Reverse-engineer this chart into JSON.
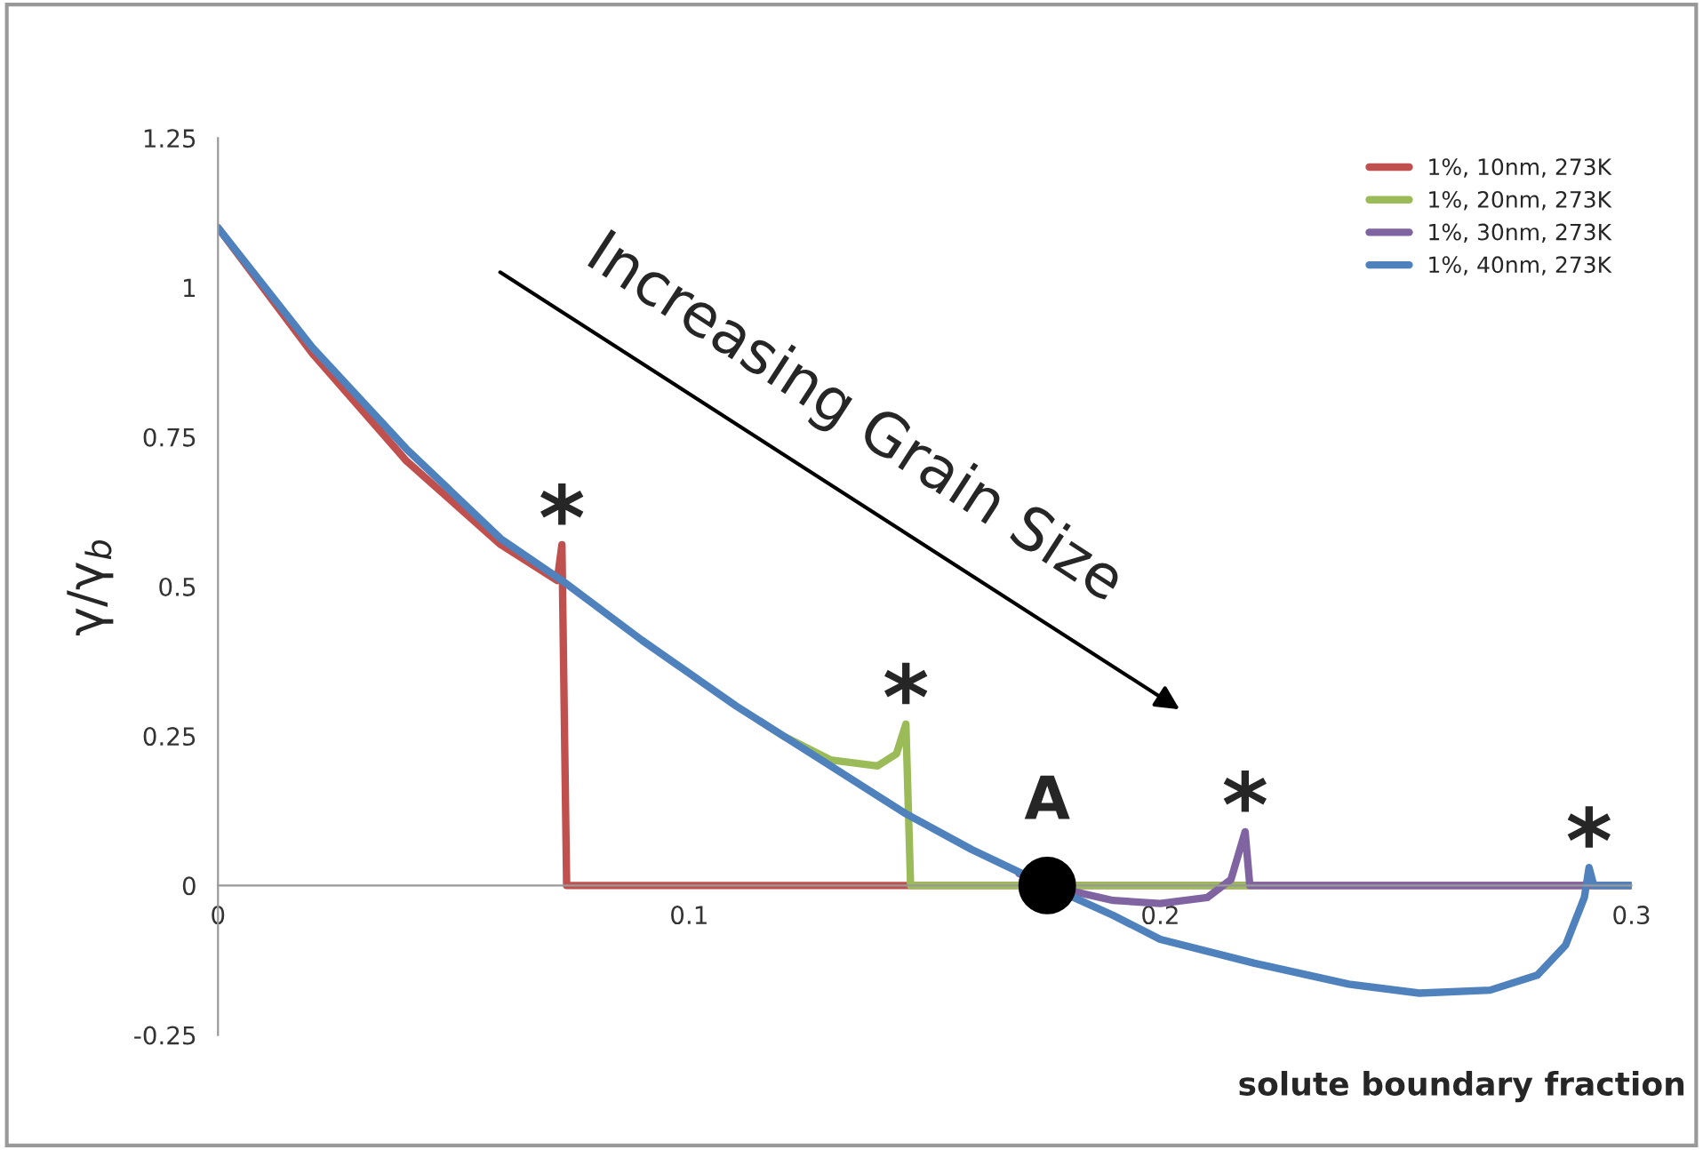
{
  "chart_data": {
    "type": "line",
    "xlabel": "solute boundary fraction",
    "ylabel": "γ/γ$_{b}$",
    "xlim": [
      0,
      0.3
    ],
    "ylim": [
      -0.25,
      1.25
    ],
    "xticks": [
      0,
      0.1,
      0.2,
      0.3
    ],
    "yticks": [
      -0.25,
      0,
      0.25,
      0.5,
      0.75,
      1,
      1.25
    ],
    "grid": false,
    "legend": "top right",
    "marker": "none",
    "line_style": "solid",
    "series": [
      {
        "name": "1%, 10nm, 273K",
        "color": "#c0504d",
        "x": [
          0,
          0.02,
          0.04,
          0.06,
          0.072,
          0.073,
          0.074,
          0.3
        ],
        "values": [
          1.1,
          0.89,
          0.71,
          0.57,
          0.51,
          0.57,
          0,
          0
        ]
      },
      {
        "name": "1%, 20nm, 273K",
        "color": "#9bbb59",
        "x": [
          0.115,
          0.12,
          0.13,
          0.14,
          0.144,
          0.146,
          0.147,
          0.22
        ],
        "values": [
          0.275,
          0.25,
          0.21,
          0.2,
          0.22,
          0.27,
          0,
          0
        ]
      },
      {
        "name": "1%, 30nm, 273K",
        "color": "#8064a2",
        "x": [
          0.17,
          0.176,
          0.19,
          0.2,
          0.21,
          0.215,
          0.218,
          0.219,
          0.3
        ],
        "values": [
          0.02,
          0,
          -0.025,
          -0.03,
          -0.02,
          0.01,
          0.09,
          0,
          0
        ]
      },
      {
        "name": "1%, 40nm, 273K",
        "color": "#4f81bd",
        "x": [
          0,
          0.02,
          0.04,
          0.06,
          0.073,
          0.09,
          0.11,
          0.13,
          0.146,
          0.16,
          0.176,
          0.19,
          0.2,
          0.22,
          0.24,
          0.255,
          0.27,
          0.28,
          0.286,
          0.29,
          0.291,
          0.292,
          0.3
        ],
        "values": [
          1.1,
          0.9,
          0.73,
          0.58,
          0.51,
          0.41,
          0.3,
          0.2,
          0.12,
          0.06,
          0,
          -0.05,
          -0.09,
          -0.13,
          -0.165,
          -0.18,
          -0.175,
          -0.15,
          -0.1,
          -0.02,
          0.03,
          0,
          0
        ]
      },
      {
        "type": "scatter",
        "color": "#000000",
        "x": [
          0.176
        ],
        "values": [
          0
        ],
        "marker": "circle"
      }
    ],
    "annotations": [
      "Increasing Grain Size",
      {
        "text": "*",
        "x": 0.073,
        "y": 0.57
      },
      {
        "text": "*",
        "x": 0.146,
        "y": 0.27
      },
      {
        "text": "*",
        "x": 0.218,
        "y": 0.09
      },
      {
        "text": "*",
        "x": 0.291,
        "y": 0.03
      },
      {
        "text": "A",
        "x": 0.176,
        "y": 0
      }
    ]
  }
}
